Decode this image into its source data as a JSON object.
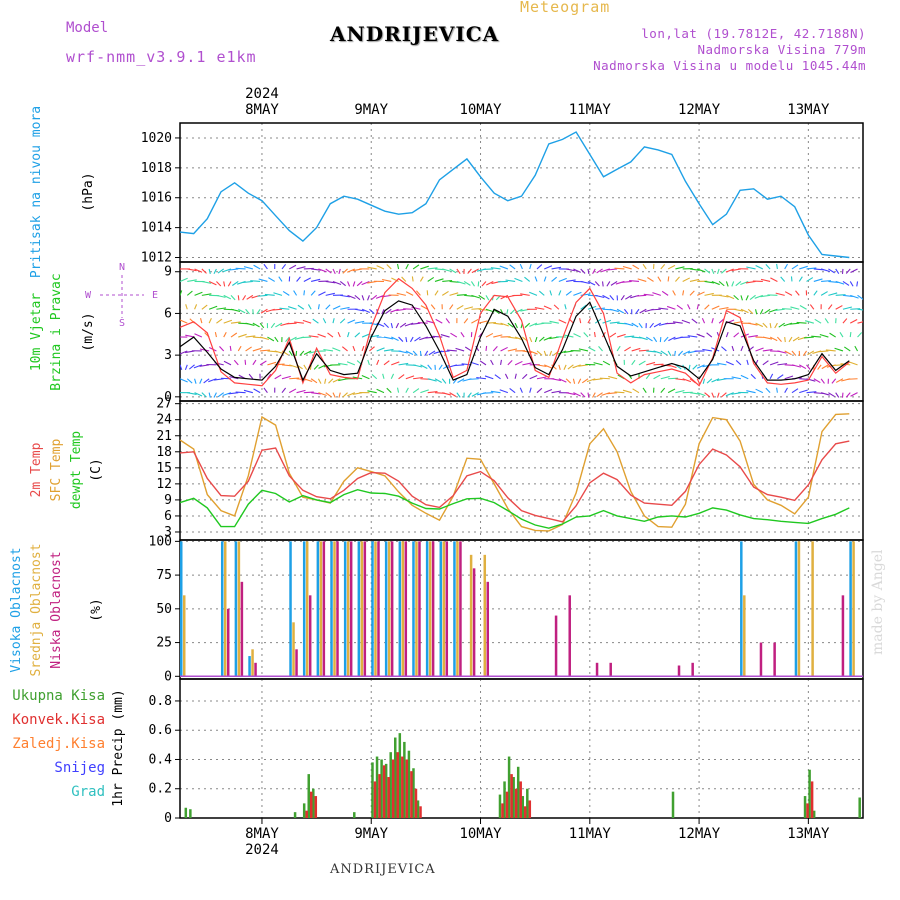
{
  "header": {
    "title": "ANDRIJEVICA",
    "subtitle": "Meteogram",
    "model_label": "Model",
    "model_name": "wrf-nmm_v3.9.1 e1km",
    "lonlat": "lon,lat (19.7812E, 42.7188N)",
    "elevation": "Nadmorska Visina 779m",
    "model_elevation": "Nadmorska Visina u modelu 1045.44m",
    "watermark": "made by Angel",
    "footer": "ANDRIJEVICA"
  },
  "time_axis": {
    "year": "2024",
    "days": [
      "8MAY",
      "9MAY",
      "10MAY",
      "11MAY",
      "12MAY",
      "13MAY"
    ]
  },
  "colors": {
    "pressure": "#1ea0e6",
    "wind_speed": "#000000",
    "wind_gust": "#ff4040",
    "temp_2m": "#e84a4a",
    "temp_sfc": "#e0a030",
    "dewpoint": "#20c820",
    "cloud_high": "#1ea0e6",
    "cloud_mid": "#e0b040",
    "cloud_low": "#c02080",
    "precip_total": "#40a030",
    "precip_conv": "#e03030",
    "precip_frozen": "#ff8030",
    "snow": "#4040ff",
    "hail": "#30c0c0"
  },
  "chart_data": [
    {
      "type": "line",
      "panel": "pressure",
      "ylabel_colored": "Pritisak na nivou mora",
      "unit": "(hPa)",
      "yticks": [
        "1012",
        "1014",
        "1016",
        "1018",
        "1020"
      ],
      "ylim": [
        1011.7,
        1021.0
      ],
      "x_hours": [
        0,
        3,
        6,
        9,
        12,
        15,
        18,
        21,
        24,
        27,
        30,
        33,
        36,
        39,
        42,
        45,
        48,
        51,
        54,
        57,
        60,
        63,
        66,
        69,
        72,
        75,
        78,
        81,
        84,
        87,
        90,
        93,
        96,
        99,
        102,
        105,
        108,
        111,
        114,
        117,
        120,
        123,
        126,
        129,
        132,
        135,
        138,
        141,
        144,
        147
      ],
      "series": [
        {
          "values": [
            1013.7,
            1013.6,
            1014.6,
            1016.4,
            1017.0,
            1016.3,
            1015.8,
            1014.8,
            1013.8,
            1013.1,
            1014.0,
            1015.6,
            1016.1,
            1015.9,
            1015.5,
            1015.1,
            1014.9,
            1015.0,
            1015.6,
            1017.2,
            1017.9,
            1018.6,
            1017.4,
            1016.3,
            1015.8,
            1016.1,
            1017.5,
            1019.6,
            1019.9,
            1020.4,
            1018.9,
            1017.4,
            1017.9,
            1018.4,
            1019.4,
            1019.2,
            1018.9,
            1017.1,
            1015.6,
            1014.2,
            1014.9,
            1016.5,
            1016.6,
            1015.9,
            1016.1,
            1015.4,
            1013.5,
            1012.2,
            1012.1,
            1012.0
          ]
        }
      ]
    },
    {
      "type": "line",
      "panel": "wind",
      "ylabel_colored_1": "10m Vjetar",
      "ylabel_colored_2": "Brzina i Pravac",
      "unit": "(m/s)",
      "compass": [
        "N",
        "S",
        "W",
        "E"
      ],
      "yticks": [
        "0",
        "3",
        "6",
        "9"
      ],
      "ylim": [
        -0.3,
        9.7
      ],
      "x_hours": [
        0,
        3,
        6,
        9,
        12,
        15,
        18,
        21,
        24,
        27,
        30,
        33,
        36,
        39,
        42,
        45,
        48,
        51,
        54,
        57,
        60,
        63,
        66,
        69,
        72,
        75,
        78,
        81,
        84,
        87,
        90,
        93,
        96,
        99,
        102,
        105,
        108,
        111,
        114,
        117,
        120,
        123,
        126,
        129,
        132,
        135,
        138,
        141,
        144,
        147
      ],
      "series": [
        {
          "values": [
            3.6,
            4.3,
            3.2,
            2.0,
            1.4,
            1.3,
            1.2,
            2.2,
            3.9,
            1.2,
            3.1,
            1.9,
            1.6,
            1.7,
            4.3,
            6.2,
            6.9,
            6.6,
            5.1,
            3.3,
            1.2,
            1.6,
            4.3,
            6.3,
            5.8,
            4.2,
            2.1,
            1.6,
            3.4,
            5.8,
            6.8,
            4.5,
            2.2,
            1.5,
            1.8,
            2.1,
            2.4,
            2.1,
            1.3,
            2.7,
            5.4,
            5.1,
            2.6,
            1.2,
            1.2,
            1.3,
            1.6,
            3.1,
            1.9,
            2.6
          ]
        },
        {
          "values": [
            5.0,
            5.4,
            4.6,
            1.8,
            1.0,
            0.9,
            0.8,
            1.9,
            4.2,
            1.0,
            3.5,
            1.6,
            1.4,
            1.3,
            5.0,
            7.5,
            8.5,
            7.8,
            6.6,
            4.4,
            1.4,
            1.9,
            6.0,
            7.3,
            7.2,
            5.5,
            1.9,
            1.4,
            4.2,
            6.8,
            7.8,
            6.0,
            1.7,
            1.0,
            1.6,
            1.8,
            2.0,
            1.7,
            0.8,
            2.8,
            6.2,
            5.7,
            2.4,
            1.0,
            0.9,
            1.0,
            1.2,
            2.9,
            1.7,
            2.5
          ]
        }
      ]
    },
    {
      "type": "line",
      "panel": "temperature",
      "ylabel_colored_1": "2m Temp",
      "ylabel_colored_2": "SFC Temp",
      "ylabel_colored_3": "dewpt Temp",
      "unit": "(C)",
      "yticks": [
        "3",
        "6",
        "9",
        "12",
        "15",
        "18",
        "21",
        "24",
        "27"
      ],
      "ylim": [
        1.5,
        27.5
      ],
      "x_hours": [
        0,
        3,
        6,
        9,
        12,
        15,
        18,
        21,
        24,
        27,
        30,
        33,
        36,
        39,
        42,
        45,
        48,
        51,
        54,
        57,
        60,
        63,
        66,
        69,
        72,
        75,
        78,
        81,
        84,
        87,
        90,
        93,
        96,
        99,
        102,
        105,
        108,
        111,
        114,
        117,
        120,
        123,
        126,
        129,
        132,
        135,
        138,
        141,
        144,
        147
      ],
      "series": [
        {
          "values": [
            17.8,
            18.0,
            13.0,
            9.8,
            9.7,
            12.5,
            18.3,
            18.7,
            13.5,
            10.8,
            9.6,
            9.2,
            10.8,
            13.0,
            14.1,
            14.0,
            12.5,
            9.7,
            8.1,
            7.6,
            9.8,
            13.5,
            14.3,
            12.6,
            9.4,
            7.0,
            6.1,
            5.5,
            4.9,
            7.9,
            12.2,
            14.0,
            12.8,
            9.9,
            8.4,
            8.2,
            8.0,
            10.6,
            15.6,
            18.5,
            17.4,
            15.2,
            11.4,
            10.0,
            9.5,
            8.9,
            11.8,
            16.5,
            19.5,
            20.0
          ]
        },
        {
          "values": [
            20.2,
            18.5,
            10.0,
            7.0,
            6.0,
            13.5,
            24.5,
            23.0,
            14.0,
            9.5,
            9.0,
            8.4,
            12.5,
            15.0,
            14.3,
            13.5,
            10.5,
            8.0,
            6.5,
            5.2,
            9.7,
            16.8,
            16.6,
            12.0,
            7.4,
            4.0,
            3.3,
            3.2,
            4.4,
            10.3,
            19.5,
            22.3,
            18.0,
            10.6,
            6.0,
            4.0,
            3.9,
            8.2,
            19.5,
            24.4,
            24.0,
            20.0,
            11.9,
            9.0,
            8.0,
            6.4,
            9.5,
            21.8,
            25.0,
            25.1
          ]
        },
        {
          "values": [
            8.5,
            9.3,
            7.5,
            4.0,
            4.0,
            8.2,
            10.8,
            10.2,
            8.6,
            9.8,
            9.0,
            8.5,
            10.0,
            10.9,
            10.3,
            10.2,
            9.7,
            8.4,
            7.4,
            7.3,
            8.3,
            9.2,
            9.3,
            8.5,
            7.0,
            5.4,
            4.3,
            3.7,
            4.5,
            5.8,
            6.0,
            7.0,
            6.0,
            5.5,
            5.0,
            5.8,
            6.0,
            5.8,
            6.5,
            7.5,
            7.1,
            6.2,
            5.5,
            5.3,
            5.0,
            4.8,
            4.6,
            5.5,
            6.3,
            7.5
          ]
        }
      ]
    },
    {
      "type": "bar",
      "panel": "clouds",
      "ylabel_colored_1": "Visoka Oblacnost",
      "ylabel_colored_2": "Srednja Oblacnost",
      "ylabel_colored_3": "Niska Oblacnost",
      "unit": "(%)",
      "yticks": [
        "0",
        "25",
        "50",
        "75",
        "100"
      ],
      "ylim": [
        -2,
        101
      ],
      "x_hours": [
        0,
        3,
        6,
        9,
        12,
        15,
        18,
        21,
        24,
        27,
        30,
        33,
        36,
        39,
        42,
        45,
        48,
        51,
        54,
        57,
        60,
        63,
        66,
        69,
        72,
        75,
        78,
        81,
        84,
        87,
        90,
        93,
        96,
        99,
        102,
        105,
        108,
        111,
        114,
        117,
        120,
        123,
        126,
        129,
        132,
        135,
        138,
        141,
        144,
        147
      ],
      "series": [
        {
          "values": [
            100,
            0,
            0,
            100,
            100,
            15,
            0,
            0,
            100,
            100,
            100,
            100,
            100,
            100,
            100,
            100,
            100,
            100,
            100,
            100,
            100,
            0,
            0,
            0,
            0,
            0,
            0,
            0,
            0,
            0,
            0,
            0,
            0,
            0,
            0,
            0,
            0,
            0,
            0,
            0,
            0,
            100,
            0,
            0,
            0,
            100,
            0,
            0,
            0,
            100
          ]
        },
        {
          "values": [
            60,
            0,
            0,
            100,
            100,
            20,
            0,
            0,
            40,
            100,
            100,
            100,
            100,
            100,
            100,
            100,
            100,
            100,
            100,
            100,
            100,
            90,
            90,
            0,
            0,
            0,
            0,
            0,
            0,
            0,
            0,
            0,
            0,
            0,
            0,
            0,
            0,
            0,
            0,
            0,
            0,
            60,
            0,
            0,
            0,
            100,
            100,
            0,
            0,
            100
          ]
        },
        {
          "values": [
            0,
            0,
            0,
            50,
            70,
            10,
            0,
            0,
            20,
            60,
            100,
            100,
            100,
            100,
            100,
            100,
            100,
            100,
            100,
            100,
            100,
            80,
            70,
            0,
            0,
            0,
            0,
            45,
            60,
            0,
            10,
            10,
            0,
            0,
            0,
            0,
            8,
            10,
            0,
            0,
            0,
            0,
            25,
            25,
            0,
            0,
            0,
            0,
            60,
            0
          ]
        }
      ]
    },
    {
      "type": "bar",
      "panel": "precipitation",
      "legend": [
        "Ukupna Kisa",
        "Konvek.Kisa",
        "Zaledj.Kisa",
        "Snijeg",
        "Grad"
      ],
      "ylabel": "1hr Precip (mm)",
      "yticks": [
        "0",
        "0.2",
        "0.4",
        "0.6",
        "0.8"
      ],
      "ylim": [
        0,
        0.95
      ],
      "x_hours": [
        1,
        2,
        25,
        27,
        28,
        29,
        38,
        42,
        43,
        44,
        45,
        46,
        47,
        48,
        49,
        50,
        51,
        52,
        53,
        54,
        55,
        56,
        70,
        71,
        72,
        73,
        74,
        75,
        76,
        78,
        108,
        137,
        138,
        139,
        140,
        142,
        143,
        149
      ],
      "series": [
        {
          "name": "Ukupna Kisa",
          "values": [
            0.07,
            0.06,
            0.04,
            0.1,
            0.3,
            0.2,
            0.04,
            0.38,
            0.42,
            0.4,
            0.37,
            0.45,
            0.55,
            0.58,
            0.52,
            0.46,
            0.34,
            0.12,
            0.0,
            0.0,
            0.0,
            0.0,
            0.16,
            0.25,
            0.42,
            0.28,
            0.35,
            0.15,
            0.2,
            0.0,
            0.18,
            0.15,
            0.33,
            0.05,
            0.0,
            0.0,
            0.0,
            0.14
          ]
        },
        {
          "name": "Konvek.Kisa",
          "values": [
            0.0,
            0.0,
            0.0,
            0.05,
            0.18,
            0.15,
            0.0,
            0.25,
            0.3,
            0.36,
            0.28,
            0.4,
            0.45,
            0.42,
            0.4,
            0.32,
            0.2,
            0.08,
            0.0,
            0.0,
            0.0,
            0.0,
            0.1,
            0.18,
            0.3,
            0.2,
            0.25,
            0.08,
            0.12,
            0.0,
            0.0,
            0.1,
            0.25,
            0.0,
            0.0,
            0.0,
            0.0,
            0.0
          ]
        }
      ]
    }
  ]
}
